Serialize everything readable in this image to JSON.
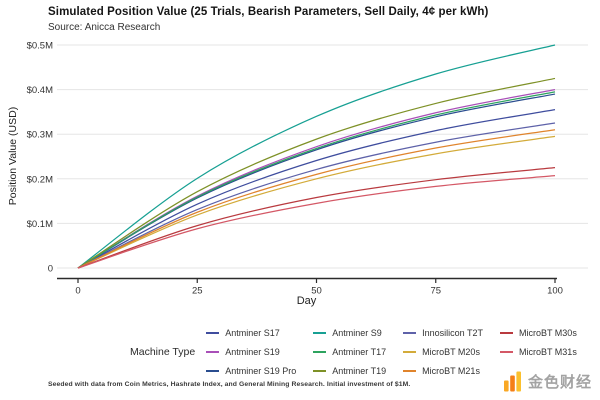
{
  "header": {
    "title": "Simulated Position Value (25 Trials, Bearish Parameters, Sell Daily, 4¢ per kWh)",
    "subtitle": "Source: Anicca Research"
  },
  "chart_data": {
    "type": "line",
    "title": "Simulated Position Value (25 Trials, Bearish Parameters, Sell Daily, 4¢ per kWh)",
    "subtitle": "Source: Anicca Research",
    "xlabel": "Day",
    "ylabel": "Position Value (USD)",
    "xlim": [
      0,
      100
    ],
    "ylim": [
      0,
      500000
    ],
    "grid": "horizontal",
    "legend_position": "bottom",
    "legend_title": "Machine Type",
    "x_ticks": [
      0,
      25,
      50,
      75,
      100
    ],
    "y_ticks": [
      {
        "value": 0,
        "label": "0"
      },
      {
        "value": 100000,
        "label": "$0.1M"
      },
      {
        "value": 200000,
        "label": "$0.2M"
      },
      {
        "value": 300000,
        "label": "$0.3M"
      },
      {
        "value": 400000,
        "label": "$0.4M"
      },
      {
        "value": 500000,
        "label": "$0.5M"
      }
    ],
    "x": [
      0,
      25,
      50,
      75,
      100
    ],
    "series": [
      {
        "name": "Antminer S17",
        "color": "#3f4d9e",
        "values": [
          0,
          143000,
          241000,
          308000,
          355000
        ]
      },
      {
        "name": "Antminer S19",
        "color": "#a94fb8",
        "values": [
          0,
          161000,
          272000,
          348000,
          400000
        ]
      },
      {
        "name": "Antminer S19 Pro",
        "color": "#2a4d8f",
        "values": [
          0,
          157000,
          265000,
          339000,
          390000
        ]
      },
      {
        "name": "Antminer S9",
        "color": "#17a093",
        "values": [
          0,
          201000,
          340000,
          435000,
          500000
        ]
      },
      {
        "name": "Antminer T17",
        "color": "#2da35f",
        "values": [
          0,
          159000,
          268000,
          343000,
          395000
        ]
      },
      {
        "name": "Antminer T19",
        "color": "#7e9127",
        "values": [
          0,
          171000,
          289000,
          369000,
          425000
        ]
      },
      {
        "name": "Innosilicon T2T",
        "color": "#5e62a9",
        "values": [
          0,
          131000,
          221000,
          282000,
          325000
        ]
      },
      {
        "name": "MicroBT M20s",
        "color": "#d3ab3a",
        "values": [
          0,
          119000,
          200000,
          256000,
          295000
        ]
      },
      {
        "name": "MicroBT M21s",
        "color": "#e0842c",
        "values": [
          0,
          125000,
          210000,
          269000,
          310000
        ]
      },
      {
        "name": "MicroBT M30s",
        "color": "#b93a3f",
        "values": [
          0,
          95000,
          158000,
          198000,
          225000
        ]
      },
      {
        "name": "MicroBT M31s",
        "color": "#d45866",
        "values": [
          0,
          88000,
          145000,
          183000,
          207000
        ]
      }
    ]
  },
  "footer": {
    "note": "Seeded with data from Coin Metrics, Hashrate Index, and General Mining Research. Initial investment of $1M."
  },
  "watermark": {
    "text": "金色财经",
    "icon": "jinse-bars-icon",
    "icon_colors": [
      "#f9a825",
      "#f57f17",
      "#fbc02d"
    ],
    "text_color": "#a3a3a3"
  }
}
